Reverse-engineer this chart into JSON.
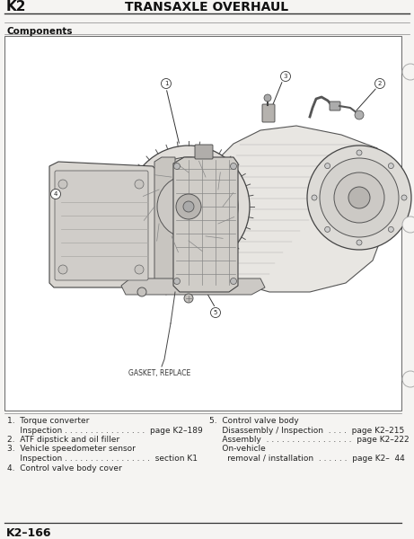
{
  "page_bg": "#f5f4f2",
  "diagram_bg": "#ffffff",
  "header_k2": "K2",
  "header_title": "TRANSAXLE OVERHAUL",
  "section_label": "Components",
  "gasket_label": "GASKET, REPLACE",
  "footer_code": "K2–166",
  "left_col_lines": [
    [
      "1.  Torque converter",
      false
    ],
    [
      "     Inspection . . . . . . . . . . . . . . . .  page K2–189",
      true
    ],
    [
      "2.  ATF dipstick and oil filler",
      false
    ],
    [
      "3.  Vehicle speedometer sensor",
      false
    ],
    [
      "     Inspection . . . . . . . . . . . . . . . . .  section K1",
      true
    ],
    [
      "4.  Control valve body cover",
      false
    ]
  ],
  "right_col_lines": [
    [
      "5.  Control valve body",
      false
    ],
    [
      "     Disassembly / Inspection  . . . .  page K2–215",
      true
    ],
    [
      "     Assembly  . . . . . . . . . . . . . . . . .  page K2–222",
      true
    ],
    [
      "     On-vehicle",
      true
    ],
    [
      "       removal / installation  . . . . . .  page K2–  44",
      true
    ]
  ],
  "line_color": "#555555",
  "text_color": "#222222",
  "header_font_size": 11,
  "section_font_size": 7.5,
  "body_font_size": 6.5,
  "footer_font_size": 9
}
